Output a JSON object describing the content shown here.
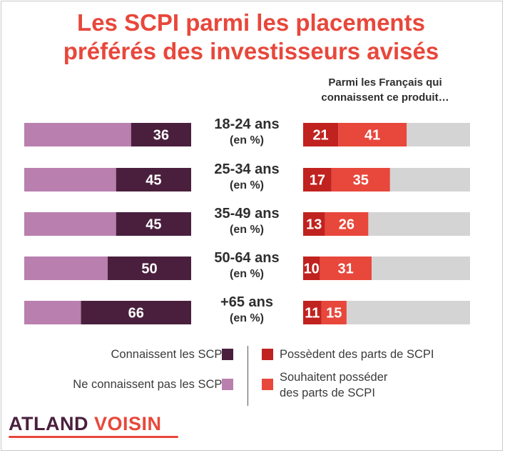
{
  "title_line1": "Les SCPI parmi les placements",
  "title_line2": "préférés des investisseurs avisés",
  "right_subtitle_line1": "Parmi les Français qui",
  "right_subtitle_line2": "connaissent ce produit…",
  "colors": {
    "title": "#e8473b",
    "connaissent": "#4a1f3d",
    "ne_connaissent_pas": "#b97fae",
    "possedent": "#c0221f",
    "souhaitent": "#e8473b",
    "track": "#d4d4d4"
  },
  "legend": {
    "connaissent": "Connaissent les SCPI",
    "ne_connaissent_pas": "Ne connaissent pas les SCPI",
    "possedent": "Possèdent des parts de SCPI",
    "souhaitent_line1": "Souhaitent posséder",
    "souhaitent_line2": "des parts de SCPI"
  },
  "logo": {
    "part1": "ATLAND",
    "part2": "VOISIN"
  },
  "chart_data": [
    {
      "type": "bar",
      "orientation": "horizontal-stacked",
      "categories": [
        "18-24 ans",
        "25-34 ans",
        "35-49 ans",
        "50-64 ans",
        "+65 ans"
      ],
      "category_unit": "(en %)",
      "series": [
        {
          "name": "Connaissent les SCPI",
          "values": [
            36,
            45,
            45,
            50,
            66
          ]
        },
        {
          "name": "Ne connaissent pas les SCPI",
          "values": [
            64,
            55,
            55,
            50,
            34
          ]
        }
      ],
      "xlim": [
        0,
        100
      ]
    },
    {
      "type": "bar",
      "orientation": "horizontal-stacked",
      "title": "Parmi les Français qui connaissent ce produit…",
      "categories": [
        "18-24 ans",
        "25-34 ans",
        "35-49 ans",
        "50-64 ans",
        "+65 ans"
      ],
      "series": [
        {
          "name": "Possèdent des parts de SCPI",
          "values": [
            21,
            17,
            13,
            10,
            11
          ]
        },
        {
          "name": "Souhaitent posséder des parts de SCPI",
          "values": [
            41,
            35,
            26,
            31,
            15
          ]
        }
      ],
      "xlim": [
        0,
        100
      ]
    }
  ]
}
